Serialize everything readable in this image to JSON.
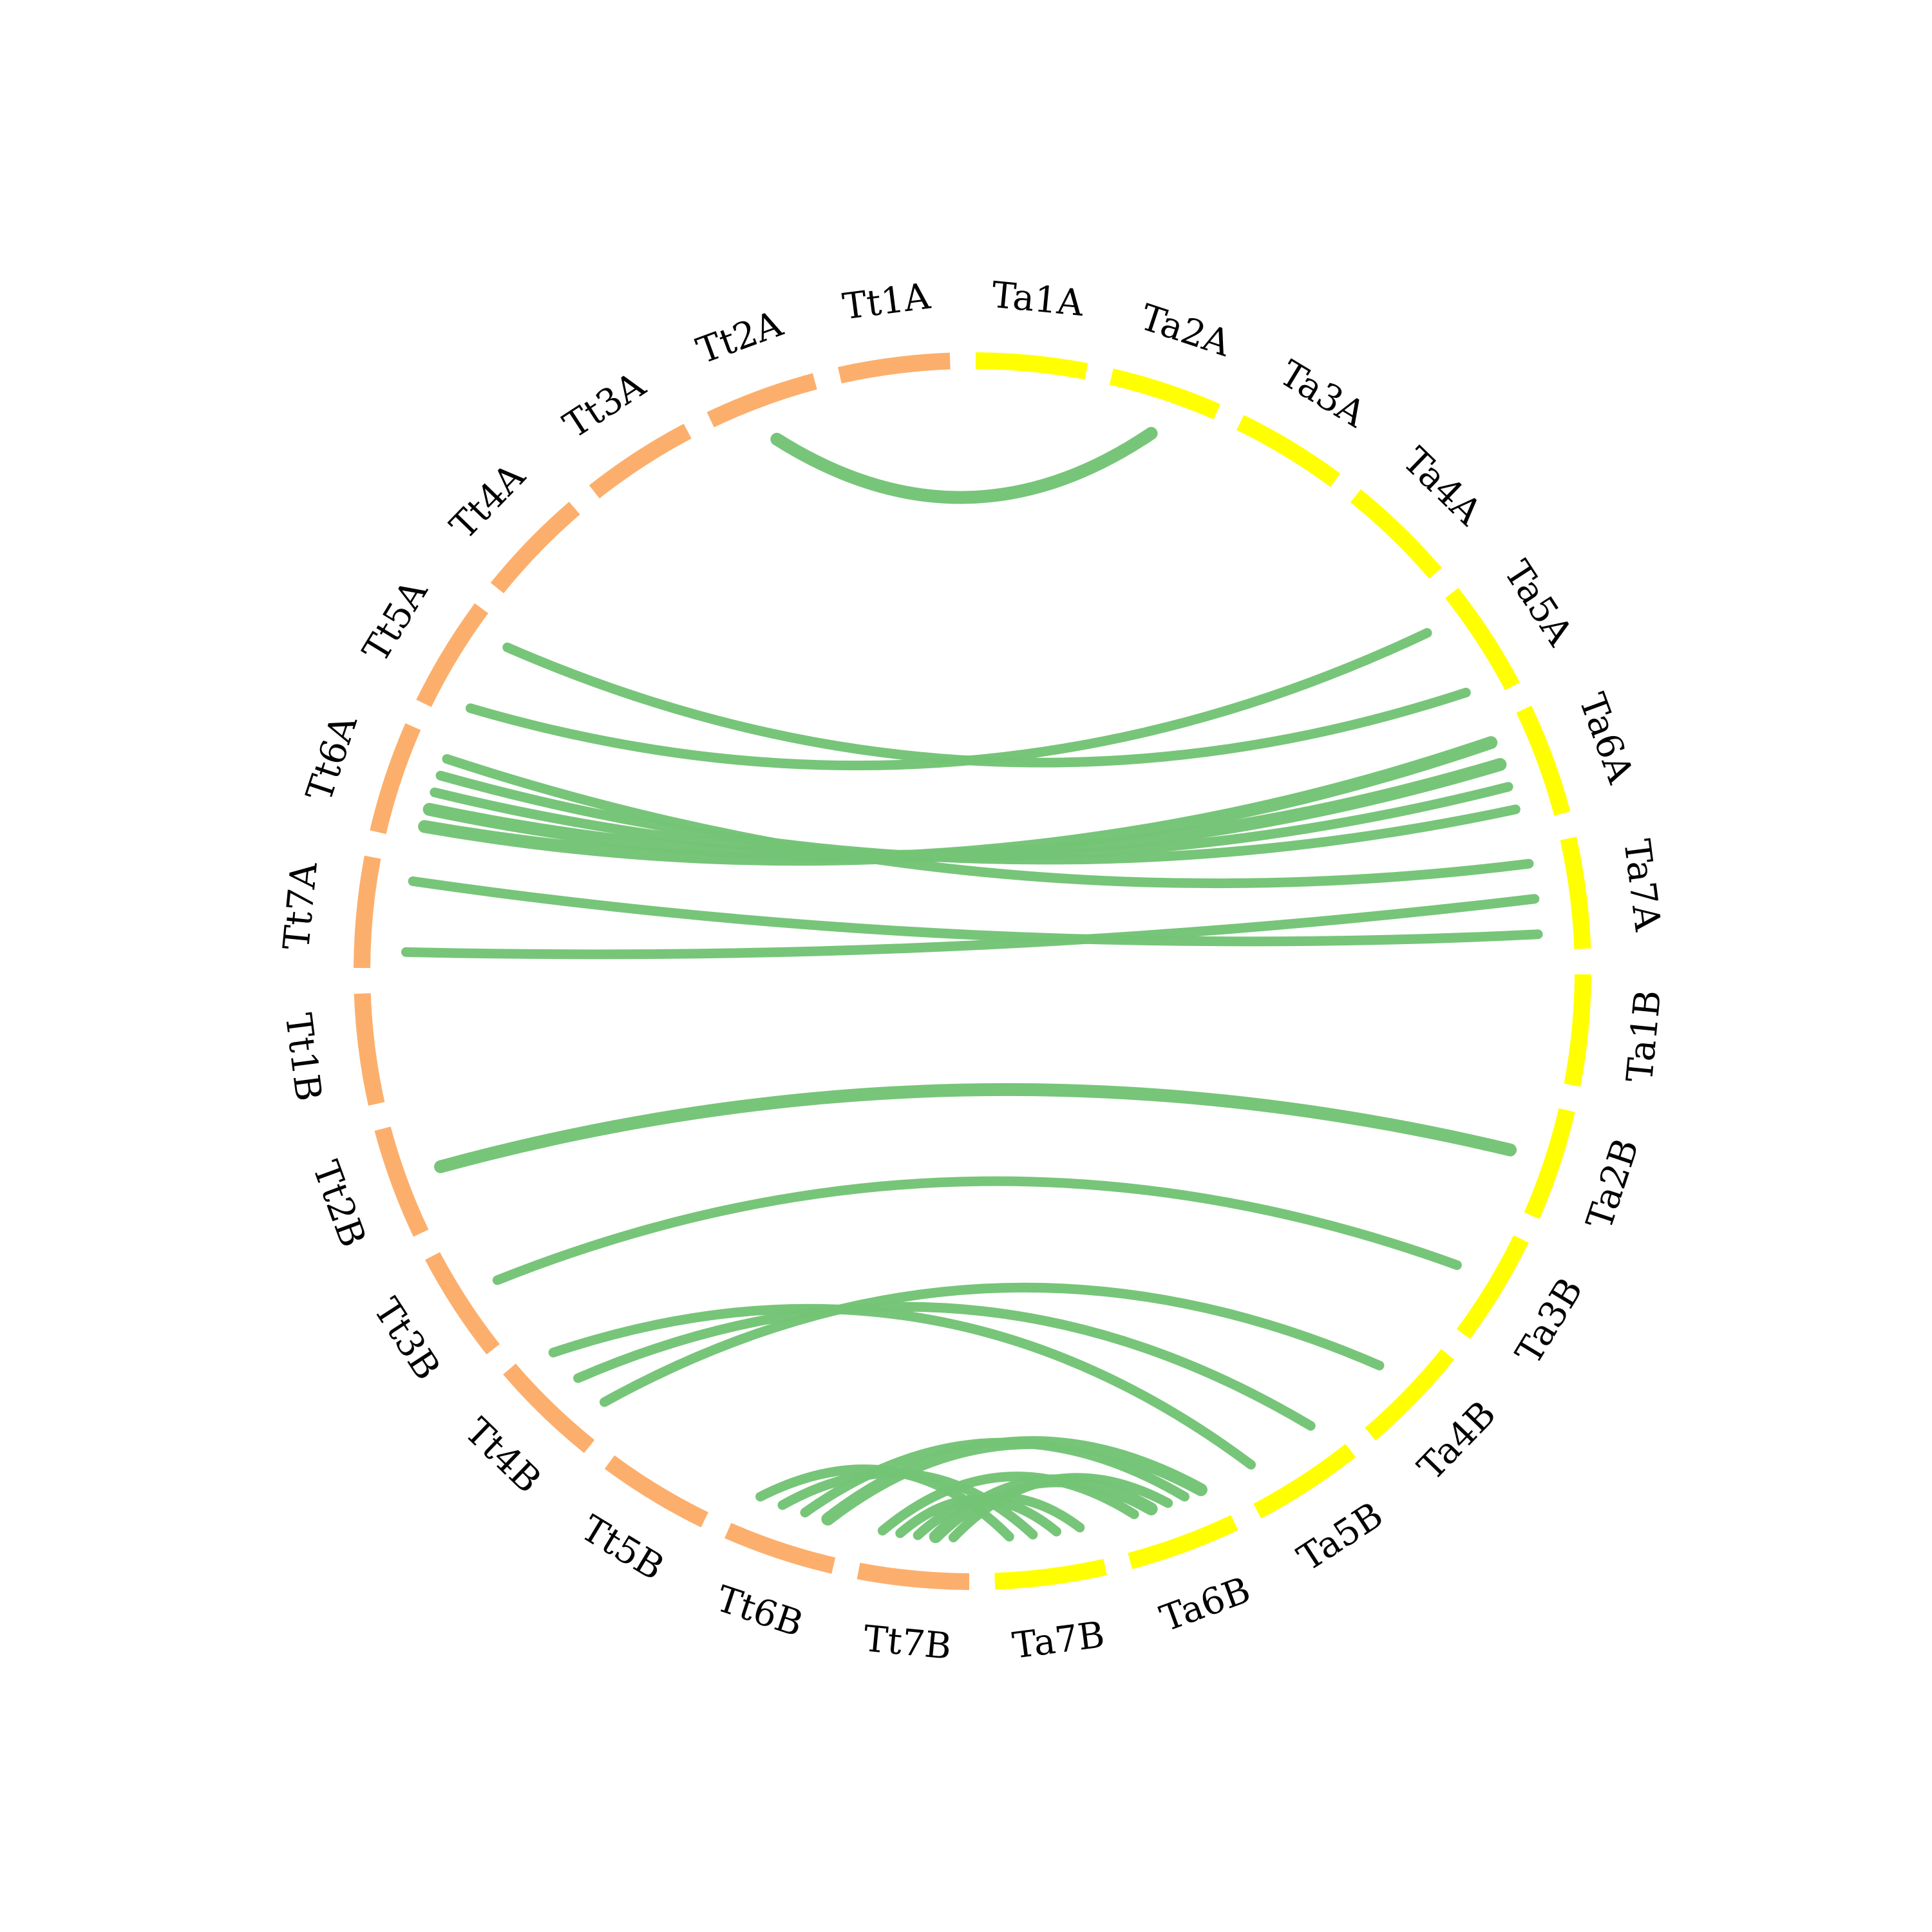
{
  "colors": {
    "Tt": "#fcaf6c",
    "Ta": "#ffff00",
    "link": "#74c476"
  },
  "chromosomes": [
    {
      "id": "Tt1A",
      "label": "Tt1A",
      "group": "Tt"
    },
    {
      "id": "Tt2A",
      "label": "Tt2A",
      "group": "Tt"
    },
    {
      "id": "Tt3A",
      "label": "Tt3A",
      "group": "Tt"
    },
    {
      "id": "Tt4A",
      "label": "Tt4A",
      "group": "Tt"
    },
    {
      "id": "Tt5A",
      "label": "Tt5A",
      "group": "Tt"
    },
    {
      "id": "Tt6A",
      "label": "Tt6A",
      "group": "Tt"
    },
    {
      "id": "Tt7A",
      "label": "Tt7A",
      "group": "Tt"
    },
    {
      "id": "Tt1B",
      "label": "Tt1B",
      "group": "Tt"
    },
    {
      "id": "Tt2B",
      "label": "Tt2B",
      "group": "Tt"
    },
    {
      "id": "Tt3B",
      "label": "Tt3B",
      "group": "Tt"
    },
    {
      "id": "Tt4B",
      "label": "Tt4B",
      "group": "Tt"
    },
    {
      "id": "Tt5B",
      "label": "Tt5B",
      "group": "Tt"
    },
    {
      "id": "Tt6B",
      "label": "Tt6B",
      "group": "Tt"
    },
    {
      "id": "Tt7B",
      "label": "Tt7B",
      "group": "Tt"
    },
    {
      "id": "Ta7B",
      "label": "Ta7B",
      "group": "Ta"
    },
    {
      "id": "Ta6B",
      "label": "Ta6B",
      "group": "Ta"
    },
    {
      "id": "Ta5B",
      "label": "Ta5B",
      "group": "Ta"
    },
    {
      "id": "Ta4B",
      "label": "Ta4B",
      "group": "Ta"
    },
    {
      "id": "Ta3B",
      "label": "Ta3B",
      "group": "Ta"
    },
    {
      "id": "Ta2B",
      "label": "Ta2B",
      "group": "Ta"
    },
    {
      "id": "Ta1B",
      "label": "Ta1B",
      "group": "Ta"
    },
    {
      "id": "Ta7A",
      "label": "Ta7A",
      "group": "Ta"
    },
    {
      "id": "Ta6A",
      "label": "Ta6A",
      "group": "Ta"
    },
    {
      "id": "Ta5A",
      "label": "Ta5A",
      "group": "Ta"
    },
    {
      "id": "Ta4A",
      "label": "Ta4A",
      "group": "Ta"
    },
    {
      "id": "Ta3A",
      "label": "Ta3A",
      "group": "Ta"
    },
    {
      "id": "Ta2A",
      "label": "Ta2A",
      "group": "Ta"
    },
    {
      "id": "Ta1A",
      "label": "Ta1A",
      "group": "Ta"
    }
  ],
  "links": [
    {
      "from": "Tt2A",
      "to": "Ta2A",
      "weight": 3
    },
    {
      "from": "Tt5A",
      "to": "Ta5A",
      "weight": 2
    },
    {
      "from": "Tt5A",
      "to": "Ta5A",
      "weight": 2
    },
    {
      "from": "Tt6A",
      "to": "Ta6A",
      "weight": 3
    },
    {
      "from": "Tt6A",
      "to": "Ta6A",
      "weight": 3
    },
    {
      "from": "Tt6A",
      "to": "Ta6A",
      "weight": 2
    },
    {
      "from": "Tt6A",
      "to": "Ta6A",
      "weight": 2
    },
    {
      "from": "Tt6A",
      "to": "Ta7A",
      "weight": 2
    },
    {
      "from": "Tt7A",
      "to": "Ta7A",
      "weight": 2
    },
    {
      "from": "Tt7A",
      "to": "Ta7A",
      "weight": 2
    },
    {
      "from": "Tt2B",
      "to": "Ta2B",
      "weight": 3
    },
    {
      "from": "Tt3B",
      "to": "Ta3B",
      "weight": 2
    },
    {
      "from": "Tt4B",
      "to": "Ta4B",
      "weight": 2
    },
    {
      "from": "Tt4B",
      "to": "Ta5B",
      "weight": 2
    },
    {
      "from": "Tt4B",
      "to": "Ta5B",
      "weight": 2
    },
    {
      "from": "Tt6B",
      "to": "Ta6B",
      "weight": 3
    },
    {
      "from": "Tt6B",
      "to": "Ta6B",
      "weight": 2
    },
    {
      "from": "Tt7B",
      "to": "Ta6B",
      "weight": 2
    },
    {
      "from": "Tt7B",
      "to": "Ta6B",
      "weight": 3
    },
    {
      "from": "Tt7B",
      "to": "Ta7B",
      "weight": 2
    },
    {
      "from": "Tt7B",
      "to": "Ta7B",
      "weight": 2
    },
    {
      "from": "Tt6B",
      "to": "Ta7B",
      "weight": 2
    },
    {
      "from": "Tt6B",
      "to": "Ta7B",
      "weight": 2
    },
    {
      "from": "Tt7B",
      "to": "Ta6B",
      "weight": 2
    }
  ]
}
